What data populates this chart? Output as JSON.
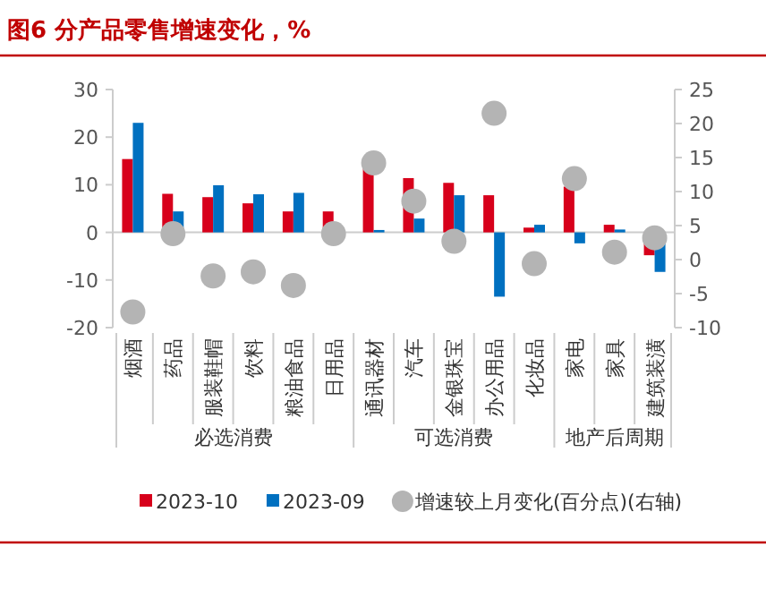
{
  "chart_data": {
    "type": "bar",
    "title": "图6  分产品零售增速变化，%",
    "categories": [
      "烟酒",
      "药品",
      "服装鞋帽",
      "饮料",
      "粮油食品",
      "日用品",
      "通讯器材",
      "汽车",
      "金银珠宝",
      "办公用品",
      "化妆品",
      "家电",
      "家具",
      "建筑装潢"
    ],
    "series": [
      {
        "name": "2023-10",
        "color": "#d7001b",
        "values": [
          15.4,
          8.1,
          7.4,
          6.1,
          4.4,
          4.4,
          13.6,
          11.4,
          10.4,
          7.8,
          1.0,
          9.6,
          1.6,
          -4.8
        ]
      },
      {
        "name": "2023-09",
        "color": "#0070c0",
        "values": [
          23.0,
          4.4,
          9.9,
          8.0,
          8.3,
          0,
          0.5,
          2.9,
          7.8,
          -13.5,
          1.6,
          -2.3,
          0.6,
          -8.3
        ]
      },
      {
        "name": "增速较上月变化(百分点)(右轴)",
        "type": "scatter",
        "axis": "y2",
        "color": "#b4b4b4",
        "marker": "circle",
        "values": [
          -7.7,
          3.8,
          -2.4,
          -1.8,
          -3.8,
          3.8,
          14.2,
          8.6,
          2.7,
          21.5,
          -0.6,
          11.9,
          1.1,
          3.2
        ]
      }
    ],
    "ylim": [
      -20,
      30
    ],
    "yticks": [
      -20,
      -10,
      0,
      10,
      20,
      30
    ],
    "y2lim": [
      -10,
      25
    ],
    "y2ticks": [
      -10,
      -5,
      0,
      5,
      10,
      15,
      20,
      25
    ],
    "annotations": [
      "必选消费",
      "可选消费",
      "地产后周期"
    ],
    "ref_lines": [
      {
        "axis": "y",
        "value": 0,
        "color": "#cccccc"
      }
    ],
    "legend": "bottom",
    "grid": false
  }
}
